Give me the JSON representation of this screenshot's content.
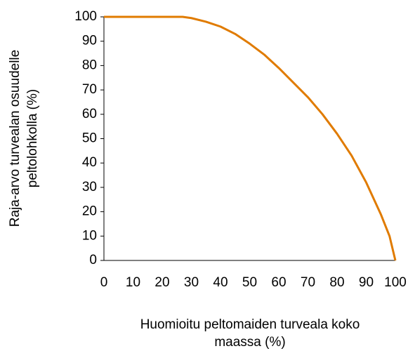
{
  "chart_data": {
    "type": "line",
    "xlabel": [
      "Huomioitu peltomaiden turveala koko",
      "maassa (%)"
    ],
    "ylabel": [
      "Raja-arvo turvealan osuudelle",
      "peltolohkolla (%)"
    ],
    "x": [
      0,
      10,
      20,
      27,
      30,
      35,
      40,
      45,
      50,
      55,
      60,
      65,
      70,
      75,
      80,
      85,
      90,
      95,
      98,
      100
    ],
    "series": [
      {
        "name": "Raja-arvo",
        "color": "#e07b00",
        "values": [
          100,
          100,
          100,
          100,
          99.5,
          98,
          96,
          93,
          89,
          84.5,
          79,
          73,
          67,
          60,
          52,
          43,
          32,
          19,
          10,
          0
        ]
      }
    ],
    "xlim": [
      0,
      100
    ],
    "xticks": [
      0,
      10,
      20,
      30,
      40,
      50,
      60,
      70,
      80,
      90,
      100
    ],
    "ylim": [
      0,
      100
    ],
    "yticks": [
      0,
      10,
      20,
      30,
      40,
      50,
      60,
      70,
      80,
      90,
      100
    ],
    "grid": false
  }
}
